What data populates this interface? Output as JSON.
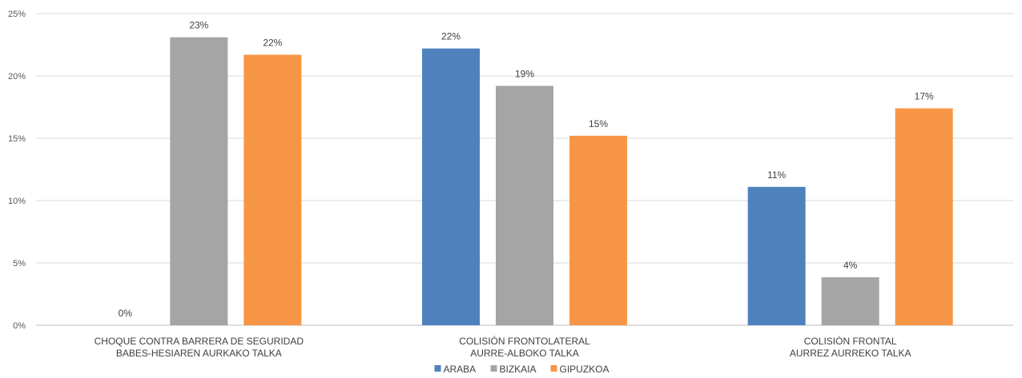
{
  "chart_data": {
    "type": "bar",
    "title": "",
    "xlabel": "",
    "ylabel": "",
    "ylim": [
      0,
      25
    ],
    "ytick_step": 5,
    "ytick_suffix": "%",
    "grid": true,
    "legend_position": "bottom",
    "categories": [
      [
        "CHOQUE CONTRA BARRERA DE SEGURIDAD",
        "BABES-HESIAREN AURKAKO TALKA"
      ],
      [
        "COLISIÓN FRONTOLATERAL",
        "AURRE-ALBOKO TALKA"
      ],
      [
        "COLISIÓN FRONTAL",
        "AURREZ AURREKO TALKA"
      ]
    ],
    "series": [
      {
        "name": "ARABA",
        "color": "#4F81BD",
        "values": [
          0,
          22.2,
          11.1
        ],
        "labels": [
          "0%",
          "22%",
          "11%"
        ]
      },
      {
        "name": "BIZKAIA",
        "color": "#A5A5A5",
        "values": [
          23.1,
          19.2,
          3.85
        ],
        "labels": [
          "23%",
          "19%",
          "4%"
        ]
      },
      {
        "name": "GIPUZKOA",
        "color": "#F79646",
        "values": [
          21.7,
          15.2,
          17.4
        ],
        "labels": [
          "22%",
          "15%",
          "17%"
        ]
      }
    ]
  }
}
